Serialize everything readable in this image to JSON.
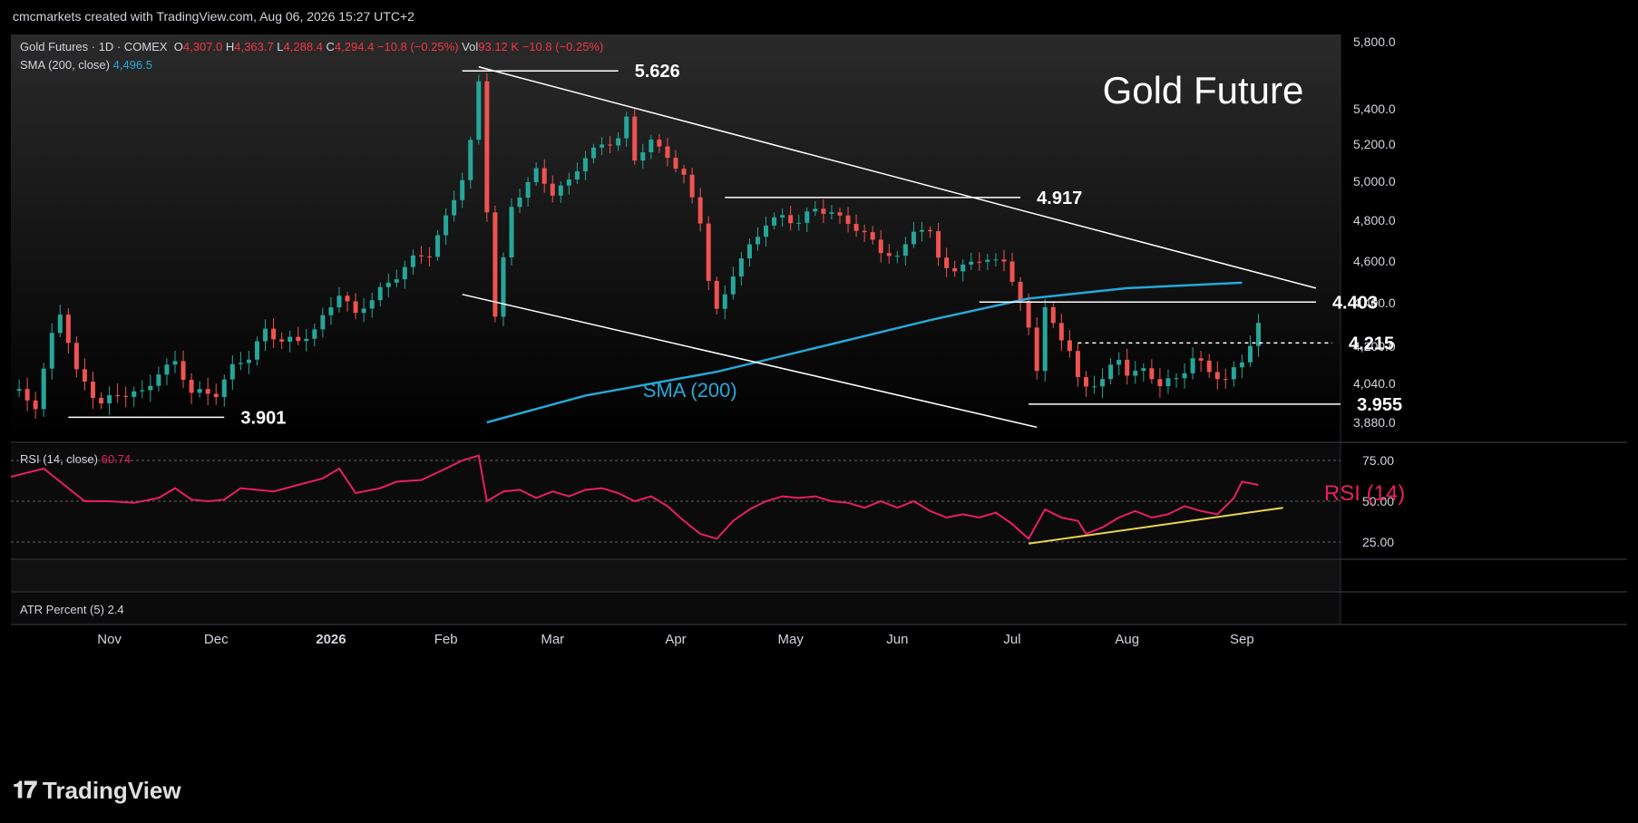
{
  "header": {
    "credit": "cmcmarkets created with TradingView.com, Aug 06, 2026 15:27 UTC+2"
  },
  "legend": {
    "symbol": "Gold Futures · 1D · COMEX",
    "o_label": "O",
    "o_value": "4,307.0",
    "h_label": "H",
    "h_value": "4,363.7",
    "l_label": "L",
    "l_value": "4,288.4",
    "c_label": "C",
    "c_value": "4,294.4",
    "change": "−10.8 (−0.25%)",
    "vol_label": "Vol",
    "vol_value": "93.12 K",
    "vol_change": "−10.8 (−0.25%)",
    "sma_label": "SMA (200, close)",
    "sma_value": "4,496.5",
    "rsi_label": "RSI (14, close)",
    "rsi_value": "60.74",
    "atr_label": "ATR Percent (5)",
    "atr_value": "2.4"
  },
  "chart_data": [
    {
      "type": "candlestick",
      "title": "Gold Future",
      "ylabel": "",
      "y_ticks": [
        "5,800.0",
        "5,400.0",
        "5,200.0",
        "5,000.0",
        "4,800.0",
        "4,600.0",
        "4,400.0",
        "4,200.0",
        "4,040.0",
        "3,880.0"
      ],
      "ylim": [
        3850,
        5850
      ],
      "x_ticks": [
        "Nov",
        "Dec",
        "2026",
        "Feb",
        "Mar",
        "Apr",
        "May",
        "Jun",
        "Jul",
        "Aug",
        "Sep"
      ],
      "close_path": [
        [
          0,
          4010
        ],
        [
          3,
          3960
        ],
        [
          5,
          4250
        ],
        [
          6,
          4350
        ],
        [
          8,
          4080
        ],
        [
          11,
          3970
        ],
        [
          14,
          3990
        ],
        [
          16,
          4000
        ],
        [
          18,
          4100
        ],
        [
          20,
          4120
        ],
        [
          22,
          4000
        ],
        [
          25,
          4010
        ],
        [
          27,
          4100
        ],
        [
          29,
          4150
        ],
        [
          31,
          4280
        ],
        [
          33,
          4230
        ],
        [
          35,
          4210
        ],
        [
          37,
          4280
        ],
        [
          40,
          4450
        ],
        [
          42,
          4330
        ],
        [
          43,
          4380
        ],
        [
          45,
          4470
        ],
        [
          47,
          4530
        ],
        [
          49,
          4600
        ],
        [
          51,
          4640
        ],
        [
          53,
          4820
        ],
        [
          55,
          5010
        ],
        [
          56,
          5200
        ],
        [
          57,
          5550
        ],
        [
          58,
          4860
        ],
        [
          59,
          4350
        ],
        [
          61,
          4870
        ],
        [
          63,
          4980
        ],
        [
          64,
          5050
        ],
        [
          66,
          4950
        ],
        [
          68,
          5000
        ],
        [
          70,
          5120
        ],
        [
          72,
          5200
        ],
        [
          74,
          5240
        ],
        [
          75,
          5340
        ],
        [
          76,
          5110
        ],
        [
          78,
          5210
        ],
        [
          80,
          5150
        ],
        [
          82,
          5020
        ],
        [
          84,
          4790
        ],
        [
          85,
          4500
        ],
        [
          86,
          4360
        ],
        [
          88,
          4550
        ],
        [
          90,
          4660
        ],
        [
          92,
          4780
        ],
        [
          94,
          4830
        ],
        [
          96,
          4790
        ],
        [
          98,
          4850
        ],
        [
          100,
          4840
        ],
        [
          102,
          4800
        ],
        [
          104,
          4720
        ],
        [
          106,
          4650
        ],
        [
          108,
          4620
        ],
        [
          110,
          4760
        ],
        [
          112,
          4720
        ],
        [
          113,
          4620
        ],
        [
          115,
          4550
        ],
        [
          117,
          4610
        ],
        [
          119,
          4580
        ],
        [
          121,
          4620
        ],
        [
          123,
          4400
        ],
        [
          124,
          4290
        ],
        [
          125,
          4100
        ],
        [
          126,
          4360
        ],
        [
          127,
          4290
        ],
        [
          129,
          4200
        ],
        [
          130,
          4060
        ],
        [
          131,
          4020
        ],
        [
          133,
          4050
        ],
        [
          135,
          4150
        ],
        [
          136,
          4100
        ],
        [
          138,
          4090
        ],
        [
          140,
          4030
        ],
        [
          142,
          4060
        ],
        [
          144,
          4160
        ],
        [
          146,
          4080
        ],
        [
          148,
          4050
        ],
        [
          150,
          4150
        ],
        [
          152,
          4294
        ]
      ],
      "sma200_path": [
        [
          58,
          3880
        ],
        [
          70,
          3990
        ],
        [
          86,
          4090
        ],
        [
          100,
          4210
        ],
        [
          112,
          4320
        ],
        [
          124,
          4420
        ],
        [
          136,
          4470
        ],
        [
          150,
          4496
        ]
      ],
      "annotations": [
        {
          "text": "5.626",
          "y": 5626
        },
        {
          "text": "4.917",
          "y": 4917
        },
        {
          "text": "4.403",
          "y": 4403
        },
        {
          "text": "4.215",
          "y": 4215
        },
        {
          "text": "3.955",
          "y": 3955
        },
        {
          "text": "3.901",
          "y": 3901
        },
        {
          "text": "SMA (200)"
        }
      ],
      "trendlines": [
        {
          "from": [
            57,
            5650
          ],
          "to": [
            159,
            4470
          ]
        },
        {
          "from": [
            55,
            4440
          ],
          "to": [
            125,
            3860
          ]
        }
      ]
    },
    {
      "type": "line",
      "title": "RSI (14)",
      "y_ticks": [
        "75.00",
        "50.00",
        "25.00"
      ],
      "ylim": [
        15,
        85
      ],
      "rsi_path": [
        [
          0,
          65
        ],
        [
          4,
          70
        ],
        [
          7,
          58
        ],
        [
          9,
          50
        ],
        [
          12,
          50
        ],
        [
          15,
          49
        ],
        [
          18,
          52
        ],
        [
          20,
          58
        ],
        [
          22,
          51
        ],
        [
          24,
          50
        ],
        [
          26,
          51
        ],
        [
          28,
          58
        ],
        [
          30,
          57
        ],
        [
          32,
          56
        ],
        [
          35,
          60
        ],
        [
          38,
          64
        ],
        [
          40,
          70
        ],
        [
          42,
          55
        ],
        [
          43,
          56
        ],
        [
          45,
          58
        ],
        [
          47,
          62
        ],
        [
          50,
          63
        ],
        [
          53,
          70
        ],
        [
          55,
          75
        ],
        [
          57,
          78
        ],
        [
          58,
          50
        ],
        [
          60,
          56
        ],
        [
          62,
          57
        ],
        [
          64,
          52
        ],
        [
          66,
          56
        ],
        [
          68,
          53
        ],
        [
          70,
          57
        ],
        [
          72,
          58
        ],
        [
          74,
          55
        ],
        [
          76,
          50
        ],
        [
          78,
          53
        ],
        [
          80,
          47
        ],
        [
          82,
          38
        ],
        [
          84,
          30
        ],
        [
          86,
          27
        ],
        [
          88,
          38
        ],
        [
          90,
          45
        ],
        [
          92,
          50
        ],
        [
          94,
          53
        ],
        [
          96,
          52
        ],
        [
          98,
          53
        ],
        [
          100,
          50
        ],
        [
          102,
          49
        ],
        [
          104,
          46
        ],
        [
          106,
          50
        ],
        [
          108,
          46
        ],
        [
          110,
          50
        ],
        [
          112,
          44
        ],
        [
          114,
          40
        ],
        [
          116,
          42
        ],
        [
          118,
          40
        ],
        [
          120,
          43
        ],
        [
          122,
          36
        ],
        [
          124,
          27
        ],
        [
          126,
          45
        ],
        [
          128,
          40
        ],
        [
          130,
          38
        ],
        [
          131,
          30
        ],
        [
          133,
          34
        ],
        [
          135,
          40
        ],
        [
          137,
          44
        ],
        [
          139,
          40
        ],
        [
          141,
          42
        ],
        [
          143,
          47
        ],
        [
          145,
          44
        ],
        [
          147,
          42
        ],
        [
          149,
          52
        ],
        [
          150,
          62
        ],
        [
          152,
          60
        ]
      ],
      "support_line": {
        "from": [
          124,
          24
        ],
        "to": [
          155,
          46
        ]
      }
    },
    {
      "type": "line",
      "title": "ATR Percent (5)"
    }
  ]
}
